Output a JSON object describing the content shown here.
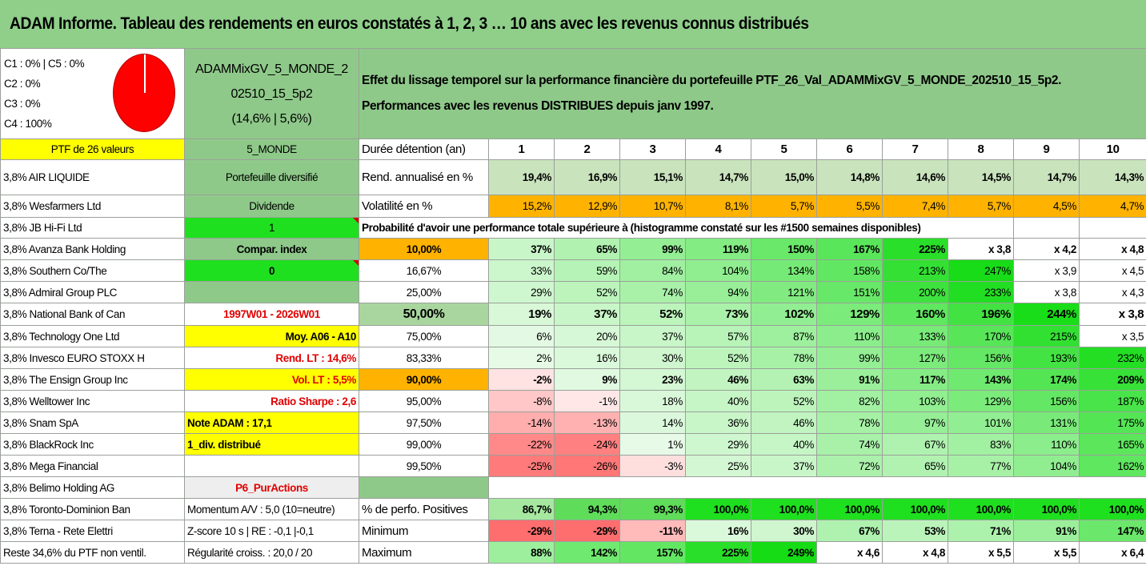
{
  "title": "ADAM Informe. Tableau des rendements en euros constatés à 1, 2, 3 … 10 ans avec les revenus connus distribués",
  "composition": {
    "line1": "C1 : 0% | C5 : 0%",
    "line2": "C2 : 0%",
    "line3": "C3 : 0%",
    "line4": "C4 : 100%",
    "pie_color": "#ff0000"
  },
  "portfolio": {
    "name_line1": "ADAMMixGV_5_MONDE_2",
    "name_line2": "02510_15_5p2",
    "name_line3": "(14,6% | 5,6%)",
    "count": "PTF de 26 valeurs",
    "code": "5_MONDE"
  },
  "description": {
    "line1": "Effet du lissage temporel sur la performance financière du portefeuille PTF_26_Val_ADAMMixGV_5_MONDE_202510_15_5p2.",
    "line2": "Performances avec les revenus DISTRIBUES depuis janv 1997."
  },
  "holdings": [
    "3,8% AIR LIQUIDE",
    "3,8% Wesfarmers Ltd",
    "3,8% JB Hi-Fi Ltd",
    "3,8% Avanza Bank Holding",
    "3,8% Southern Co/The",
    "3,8% Admiral Group PLC",
    "3,8% National Bank of Can",
    "3,8% Technology One Ltd",
    "3,8% Invesco EURO STOXX H",
    "3,8% The Ensign Group Inc",
    "3,8% Welltower Inc",
    "3,8% Snam SpA",
    "3,8% BlackRock Inc",
    "3,8% Mega Financial",
    "3,8% Belimo Holding AG",
    "3,8% Toronto-Dominion Ban",
    "3,8% Terna - Rete Elettri",
    "Reste 34,6% du PTF non ventil."
  ],
  "info": {
    "diversified": "Portefeuille diversifié",
    "dividend": "Dividende",
    "dividend_value": "1",
    "compar": "Compar. index",
    "compar_value": "0",
    "blank": "",
    "period": "1997W01 - 2026W01",
    "moy": "Moy. A06 - A10",
    "rend_lt": "Rend. LT : 14,6%",
    "vol_lt": "Vol. LT : 5,5%",
    "sharpe": "Ratio Sharpe : 2,6",
    "note": "Note ADAM : 17,1",
    "div_dist": "1_div. distribué",
    "blank2": "",
    "p6": "P6_PurActions",
    "momentum": "Momentum A/V : 5,0 (10=neutre)",
    "zscore": "Z-score 10 s | RE : -0,1 |-0,1",
    "regularite": "Régularité croiss. : 20,0 / 20"
  },
  "table": {
    "duration_label": "Durée détention (an)",
    "years": [
      "1",
      "2",
      "3",
      "4",
      "5",
      "6",
      "7",
      "8",
      "9",
      "10"
    ],
    "rend_label": "Rend. annualisé en %",
    "rend": [
      "19,4%",
      "16,9%",
      "15,1%",
      "14,7%",
      "15,0%",
      "14,8%",
      "14,6%",
      "14,5%",
      "14,7%",
      "14,3%"
    ],
    "vol_label": "Volatilité en %",
    "vol": [
      "15,2%",
      "12,9%",
      "10,7%",
      "8,1%",
      "5,7%",
      "5,5%",
      "7,4%",
      "5,7%",
      "4,5%",
      "4,7%"
    ],
    "prob_label": "Probabilité d'avoir une performance totale supérieure à (histogramme constaté sur les #1500 semaines disponibles)",
    "prob_rows": [
      {
        "p": "10,00%",
        "v": [
          "37%",
          "65%",
          "99%",
          "119%",
          "150%",
          "167%",
          "225%",
          "x 3,8",
          "x 4,2",
          "x 4,8"
        ]
      },
      {
        "p": "16,67%",
        "v": [
          "33%",
          "59%",
          "84%",
          "104%",
          "134%",
          "158%",
          "213%",
          "247%",
          "x 3,9",
          "x 4,5"
        ]
      },
      {
        "p": "25,00%",
        "v": [
          "29%",
          "52%",
          "74%",
          "94%",
          "121%",
          "151%",
          "200%",
          "233%",
          "x 3,8",
          "x 4,3"
        ]
      },
      {
        "p": "50,00%",
        "v": [
          "19%",
          "37%",
          "52%",
          "73%",
          "102%",
          "129%",
          "160%",
          "196%",
          "244%",
          "x 3,8"
        ]
      },
      {
        "p": "75,00%",
        "v": [
          "6%",
          "20%",
          "37%",
          "57%",
          "87%",
          "110%",
          "133%",
          "170%",
          "215%",
          "x 3,5"
        ]
      },
      {
        "p": "83,33%",
        "v": [
          "2%",
          "16%",
          "30%",
          "52%",
          "78%",
          "99%",
          "127%",
          "156%",
          "193%",
          "232%"
        ]
      },
      {
        "p": "90,00%",
        "v": [
          "-2%",
          "9%",
          "23%",
          "46%",
          "63%",
          "91%",
          "117%",
          "143%",
          "174%",
          "209%"
        ]
      },
      {
        "p": "95,00%",
        "v": [
          "-8%",
          "-1%",
          "18%",
          "40%",
          "52%",
          "82%",
          "103%",
          "129%",
          "156%",
          "187%"
        ]
      },
      {
        "p": "97,50%",
        "v": [
          "-14%",
          "-13%",
          "14%",
          "36%",
          "46%",
          "78%",
          "97%",
          "101%",
          "131%",
          "175%"
        ]
      },
      {
        "p": "99,00%",
        "v": [
          "-22%",
          "-24%",
          "1%",
          "29%",
          "40%",
          "74%",
          "67%",
          "83%",
          "110%",
          "165%"
        ]
      },
      {
        "p": "99,50%",
        "v": [
          "-25%",
          "-26%",
          "-3%",
          "25%",
          "37%",
          "72%",
          "65%",
          "77%",
          "104%",
          "162%"
        ]
      }
    ],
    "pos_label": "% de perfo. Positives",
    "pos": [
      "86,7%",
      "94,3%",
      "99,3%",
      "100,0%",
      "100,0%",
      "100,0%",
      "100,0%",
      "100,0%",
      "100,0%",
      "100,0%"
    ],
    "min_label": "Minimum",
    "min": [
      "-29%",
      "-29%",
      "-11%",
      "16%",
      "30%",
      "67%",
      "53%",
      "71%",
      "91%",
      "147%"
    ],
    "max_label": "Maximum",
    "max": [
      "88%",
      "142%",
      "157%",
      "225%",
      "249%",
      "x 4,6",
      "x 4,8",
      "x 5,5",
      "x 5,5",
      "x 6,4"
    ]
  }
}
